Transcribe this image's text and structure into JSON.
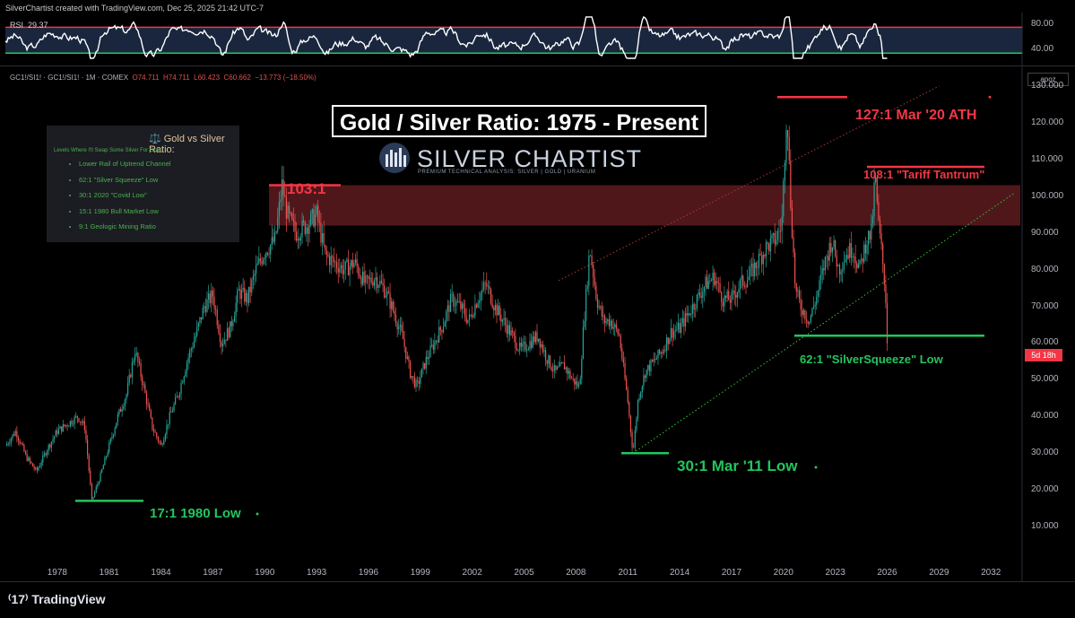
{
  "header": {
    "credit": "SilverChartist created with TradingView.com, Dec 25, 2025 21:42 UTC-7"
  },
  "rsi": {
    "label": "RSI",
    "value": "29.37",
    "ticks": [
      "80.00",
      "40.00"
    ],
    "upper_color": "#f23645",
    "lower_color": "#22c55e"
  },
  "symbol_line": {
    "text": "GC1!/SI1! · GC1!/SI1! · 1M · COMEX",
    "o": "O74.711",
    "h": "H74.711",
    "l": "L60.423",
    "c": "C60.662",
    "chg": "−13.773 (−18.50%)"
  },
  "scale_button": "apoz",
  "title": "Gold / Silver Ratio: 1975 - Present",
  "logo": {
    "name": "SILVER CHARTIST",
    "tagline": "PREMIUM TECHNICAL ANALYSIS: SILVER | GOLD | URANIUM"
  },
  "legend": {
    "title": "⚖️ Gold vs Silver Ratio:",
    "subtitle": "Levels Where I'll Swap Some Silver For Gold:",
    "items": [
      "Lower Rail of Uptrend Channel",
      "62:1 \"Silver Squeeze\" Low",
      "30:1 2020 \"Covid Low\"",
      "15:1 1980 Bull Market Low",
      "9:1 Geologic Mining Ratio"
    ]
  },
  "annotations": {
    "a103": "103:1",
    "a127": "127:1 Mar '20 ATH",
    "a108": "108:1 \"Tariff Tantrum\"",
    "a62": "62:1 \"SilverSqueeze\" Low",
    "a30": "30:1 Mar '11 Low",
    "a17": "17:1 1980 Low"
  },
  "last_badge": "5d 18h",
  "footer": "TradingView",
  "colors": {
    "up": "#26a69a",
    "down": "#ef5350",
    "zone": "#6b1f24",
    "bg": "#000000"
  },
  "chart_data": {
    "type": "candlestick",
    "title": "Gold / Silver Ratio: 1975 - Present",
    "x_tick_labels": [
      "1978",
      "1981",
      "1984",
      "1987",
      "1990",
      "1993",
      "1996",
      "1999",
      "2002",
      "2005",
      "2008",
      "2011",
      "2014",
      "2017",
      "2020",
      "2023",
      "2026",
      "2029",
      "2032"
    ],
    "y_tick_labels": [
      "130.000",
      "120.000",
      "110.000",
      "100.000",
      "90.000",
      "80.000",
      "70.000",
      "60.000",
      "50.000",
      "40.000",
      "30.000",
      "20.000",
      "10.000"
    ],
    "ylim": [
      0,
      130
    ],
    "xlim": [
      1975,
      2033.7
    ],
    "close_path": [
      [
        1975.0,
        32
      ],
      [
        1975.6,
        36
      ],
      [
        1976.2,
        29
      ],
      [
        1976.8,
        25
      ],
      [
        1977.4,
        31
      ],
      [
        1978.0,
        36
      ],
      [
        1978.6,
        38
      ],
      [
        1979.2,
        40
      ],
      [
        1979.6,
        37
      ],
      [
        1980.0,
        17
      ],
      [
        1980.5,
        24
      ],
      [
        1981.0,
        32
      ],
      [
        1981.5,
        40
      ],
      [
        1982.0,
        46
      ],
      [
        1982.5,
        58
      ],
      [
        1983.0,
        48
      ],
      [
        1983.5,
        37
      ],
      [
        1984.0,
        32
      ],
      [
        1984.5,
        40
      ],
      [
        1985.0,
        46
      ],
      [
        1985.5,
        55
      ],
      [
        1986.0,
        62
      ],
      [
        1986.5,
        70
      ],
      [
        1987.0,
        73
      ],
      [
        1987.5,
        60
      ],
      [
        1988.0,
        64
      ],
      [
        1988.5,
        74
      ],
      [
        1989.0,
        72
      ],
      [
        1989.5,
        80
      ],
      [
        1990.0,
        85
      ],
      [
        1990.6,
        88
      ],
      [
        1991.0,
        103
      ],
      [
        1991.3,
        95
      ],
      [
        1991.8,
        90
      ],
      [
        1992.4,
        92
      ],
      [
        1993.0,
        95
      ],
      [
        1993.5,
        84
      ],
      [
        1994.0,
        82
      ],
      [
        1994.6,
        80
      ],
      [
        1995.2,
        82
      ],
      [
        1995.8,
        76
      ],
      [
        1996.4,
        78
      ],
      [
        1997.0,
        74
      ],
      [
        1997.5,
        68
      ],
      [
        1998.0,
        61
      ],
      [
        1998.4,
        52
      ],
      [
        1998.8,
        48
      ],
      [
        1999.3,
        55
      ],
      [
        1999.8,
        60
      ],
      [
        2000.3,
        65
      ],
      [
        2000.8,
        72
      ],
      [
        2001.3,
        70
      ],
      [
        2001.8,
        66
      ],
      [
        2002.3,
        72
      ],
      [
        2002.8,
        76
      ],
      [
        2003.3,
        70
      ],
      [
        2003.8,
        66
      ],
      [
        2004.3,
        62
      ],
      [
        2004.8,
        58
      ],
      [
        2005.3,
        60
      ],
      [
        2005.8,
        62
      ],
      [
        2006.3,
        56
      ],
      [
        2006.8,
        52
      ],
      [
        2007.3,
        54
      ],
      [
        2007.8,
        50
      ],
      [
        2008.2,
        48
      ],
      [
        2008.4,
        62
      ],
      [
        2008.8,
        86
      ],
      [
        2009.2,
        72
      ],
      [
        2009.6,
        66
      ],
      [
        2010.0,
        66
      ],
      [
        2010.5,
        62
      ],
      [
        2011.0,
        44
      ],
      [
        2011.3,
        30
      ],
      [
        2011.6,
        45
      ],
      [
        2012.0,
        52
      ],
      [
        2012.5,
        55
      ],
      [
        2013.0,
        58
      ],
      [
        2013.5,
        63
      ],
      [
        2014.0,
        64
      ],
      [
        2014.5,
        68
      ],
      [
        2015.0,
        72
      ],
      [
        2015.5,
        76
      ],
      [
        2016.0,
        78
      ],
      [
        2016.5,
        72
      ],
      [
        2017.0,
        72
      ],
      [
        2017.5,
        76
      ],
      [
        2018.0,
        78
      ],
      [
        2018.5,
        82
      ],
      [
        2019.0,
        86
      ],
      [
        2019.5,
        88
      ],
      [
        2019.9,
        92
      ],
      [
        2020.2,
        125
      ],
      [
        2020.4,
        100
      ],
      [
        2020.7,
        74
      ],
      [
        2021.0,
        70
      ],
      [
        2021.5,
        66
      ],
      [
        2022.0,
        74
      ],
      [
        2022.4,
        82
      ],
      [
        2022.8,
        88
      ],
      [
        2023.2,
        80
      ],
      [
        2023.6,
        84
      ],
      [
        2024.0,
        86
      ],
      [
        2024.4,
        80
      ],
      [
        2024.8,
        88
      ],
      [
        2025.1,
        90
      ],
      [
        2025.3,
        106
      ],
      [
        2025.5,
        92
      ],
      [
        2025.7,
        84
      ],
      [
        2025.9,
        74
      ],
      [
        2026.0,
        61
      ]
    ],
    "annotations": [
      {
        "label": "103:1",
        "value": 103
      },
      {
        "label": "127:1 Mar '20 ATH",
        "value": 127
      },
      {
        "label": "108:1 \"Tariff Tantrum\"",
        "value": 108
      },
      {
        "label": "62:1 \"SilverSqueeze\" Low",
        "value": 62
      },
      {
        "label": "30:1 Mar '11 Low",
        "value": 30
      },
      {
        "label": "17:1 1980 Low",
        "value": 17
      }
    ],
    "resistance_zone": [
      92,
      103
    ],
    "uptrend_channel": {
      "lower": [
        [
          2011.3,
          30
        ],
        [
          2033.4,
          101
        ]
      ],
      "upper": [
        [
          2007,
          77
        ],
        [
          2029,
          130
        ]
      ]
    },
    "last_close": 60.662,
    "rsi_levels": [
      70,
      30
    ]
  }
}
